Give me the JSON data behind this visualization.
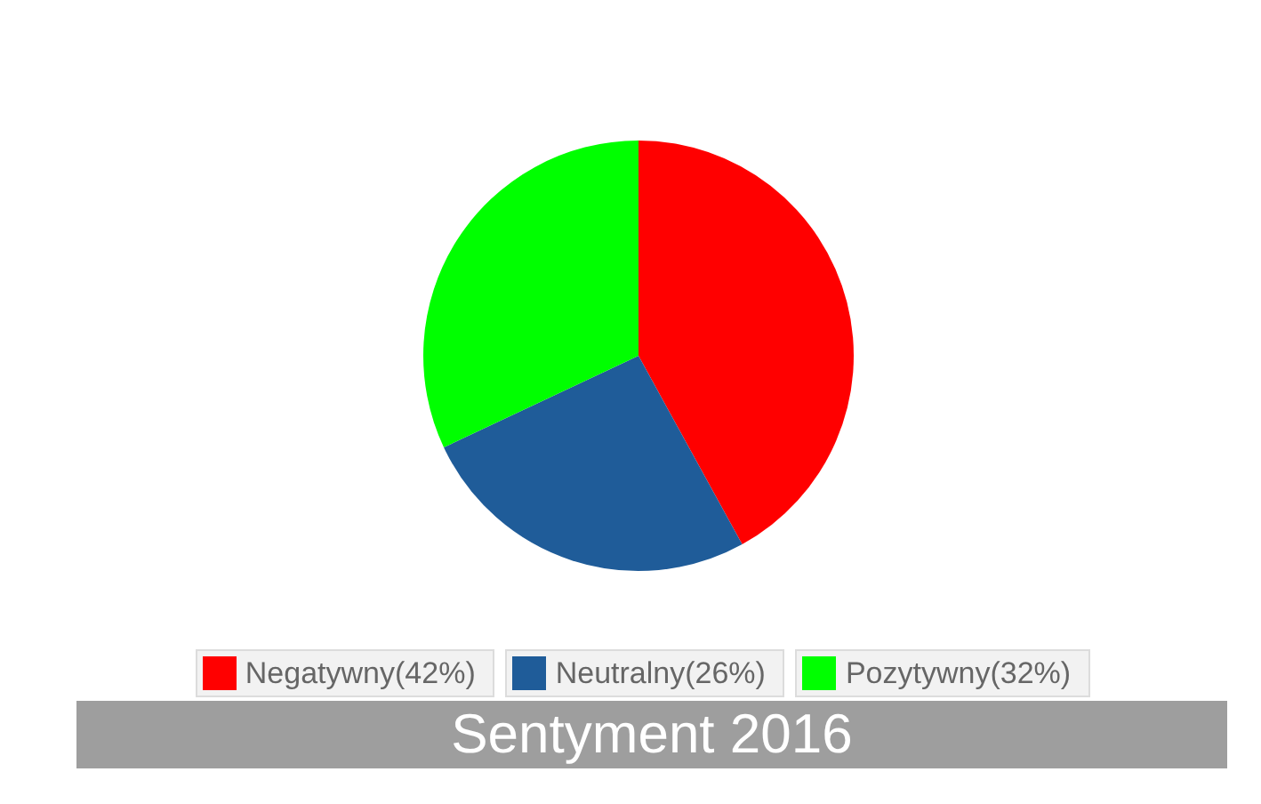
{
  "chart_data": {
    "type": "pie",
    "title": "Sentyment 2016",
    "categories": [
      "Negatywny(42%)",
      "Neutralny(26%)",
      "Pozytywny(32%)"
    ],
    "values": [
      42,
      26,
      32
    ],
    "colors": [
      "#ff0000",
      "#1f5c99",
      "#00ff00"
    ],
    "legend": "bottom"
  }
}
